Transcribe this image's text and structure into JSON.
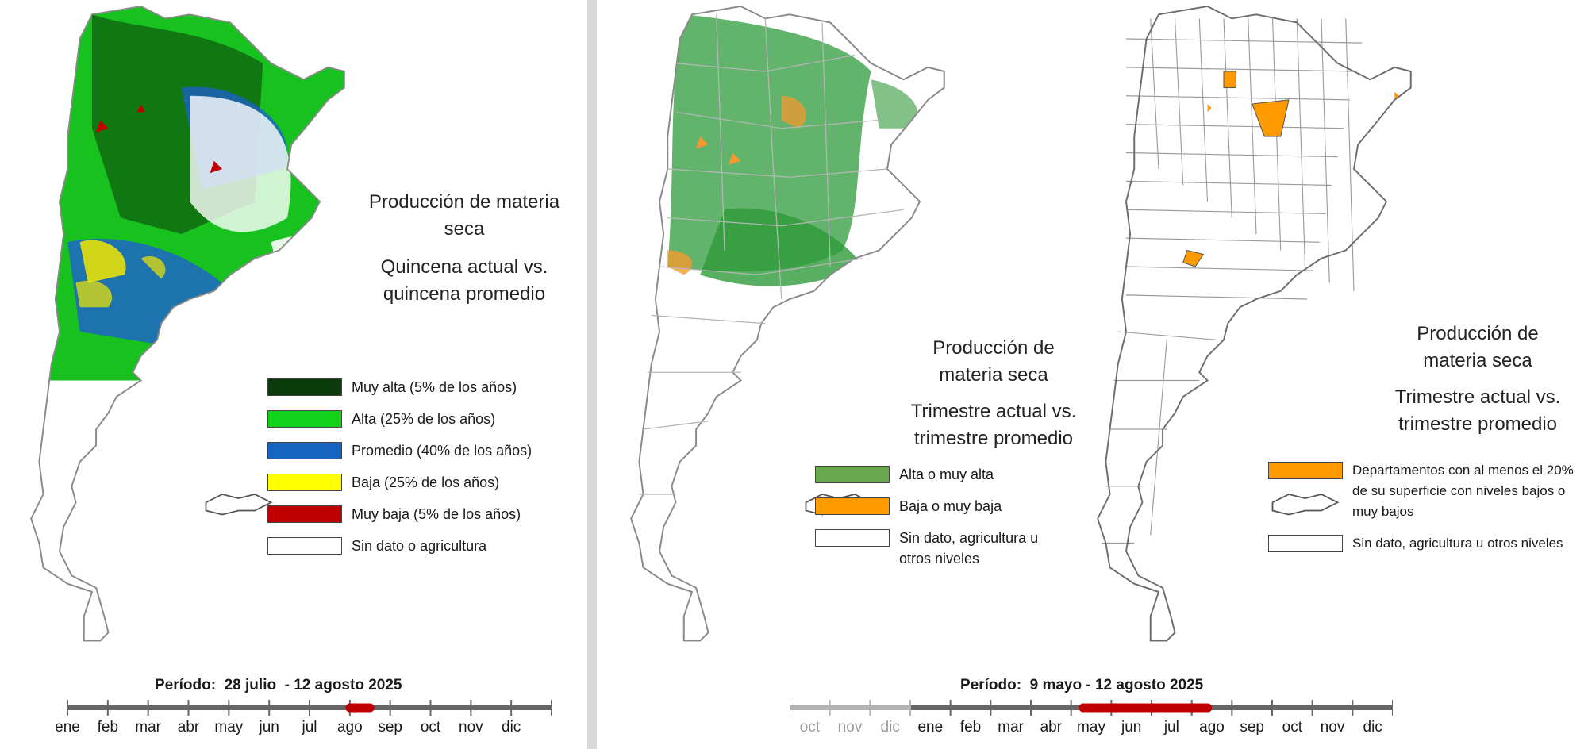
{
  "left_panel": {
    "title_line1": "Producción de materia",
    "title_line2": "seca",
    "subtitle_line1": "Quincena actual vs.",
    "subtitle_line2": "quincena  promedio",
    "legend": [
      {
        "label": "Muy alta (5% de los años)",
        "color": "#0b3a0b"
      },
      {
        "label": "Alta (25% de los años)",
        "color": "#11d11a"
      },
      {
        "label": "Promedio (40% de los años)",
        "color": "#1565c0"
      },
      {
        "label": "Baja (25% de los años)",
        "color": "#ffff00"
      },
      {
        "label": "Muy baja (5% de los años)",
        "color": "#c00000"
      },
      {
        "label": "Sin dato o agricultura",
        "color": "#ffffff"
      }
    ],
    "period_label": "Período:  28 julio  - 12 agosto 2025",
    "months": [
      "ene",
      "feb",
      "mar",
      "abr",
      "may",
      "jun",
      "jul",
      "ago",
      "sep",
      "oct",
      "nov",
      "dic"
    ],
    "highlight_range": [
      7.0,
      7.5
    ]
  },
  "middle_panel": {
    "title_line1": "Producción de",
    "title_line2": "materia seca",
    "subtitle_line1": "Trimestre actual vs.",
    "subtitle_line2": "trimestre promedio",
    "legend": [
      {
        "label": "Alta o muy alta",
        "color": "#6aa84f"
      },
      {
        "label": "Baja o muy baja",
        "color": "#ff9900"
      },
      {
        "label": "Sin dato, agricultura u otros niveles",
        "color": "#ffffff"
      }
    ]
  },
  "right_panel": {
    "title_line1": "Producción de",
    "title_line2": "materia seca",
    "subtitle_line1": "Trimestre actual vs.",
    "subtitle_line2": "trimestre promedio",
    "legend": [
      {
        "label": "Departamentos con al menos el 20% de su superficie con niveles bajos o muy bajos",
        "color": "#ff9900"
      },
      {
        "label": "Sin dato, agricultura u otros niveles",
        "color": "#ffffff"
      }
    ]
  },
  "right_timeline": {
    "period_label": "Período:  9 mayo - 12 agosto 2025",
    "months_prev": [
      "oct",
      "nov",
      "dic"
    ],
    "months": [
      "ene",
      "feb",
      "mar",
      "abr",
      "may",
      "jun",
      "jul",
      "ago",
      "sep",
      "oct",
      "nov",
      "dic"
    ],
    "highlight_range": [
      4.3,
      7.4
    ]
  }
}
